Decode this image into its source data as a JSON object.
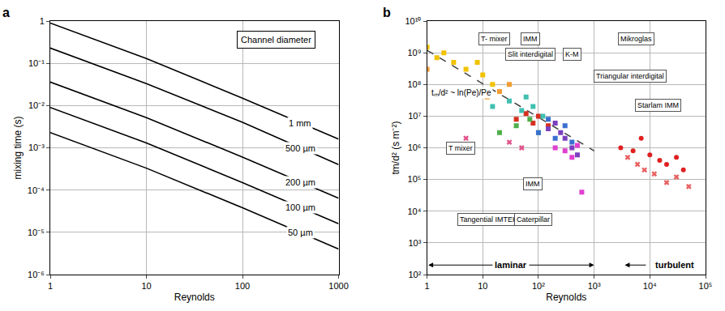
{
  "chart_data": [
    {
      "panel": "a",
      "type": "line",
      "log": true,
      "grid": true,
      "xlabel": "Reynolds",
      "ylabel": "mixing time (s)",
      "xlim": [
        1,
        1000
      ],
      "xticks": [
        1,
        10,
        100,
        1000
      ],
      "ylim": [
        1e-06,
        1
      ],
      "yticks": [
        {
          "value": 1e-06,
          "label": "10⁻⁶"
        },
        {
          "value": 1e-05,
          "label": "10⁻⁵"
        },
        {
          "value": 0.0001,
          "label": "10⁻⁴"
        },
        {
          "value": 0.001,
          "label": "10⁻³"
        },
        {
          "value": 0.01,
          "label": "10⁻²"
        },
        {
          "value": 0.1,
          "label": "10⁻¹"
        },
        1
      ],
      "annotations": [
        {
          "text": "Channel diameter"
        }
      ],
      "series": [
        {
          "name": "1 mm",
          "color": "#000000",
          "x": [
            1,
            10,
            100,
            1000
          ],
          "values": [
            0.9,
            0.13,
            0.015,
            0.0016
          ]
        },
        {
          "name": "500 µm",
          "color": "#000000",
          "x": [
            1,
            10,
            100,
            1000
          ],
          "values": [
            0.23,
            0.033,
            0.004,
            0.0004
          ]
        },
        {
          "name": "200 µm",
          "color": "#000000",
          "x": [
            1,
            10,
            100,
            1000
          ],
          "values": [
            0.036,
            0.0052,
            0.0006,
            6.4e-05
          ]
        },
        {
          "name": "100 µm",
          "color": "#000000",
          "x": [
            1,
            10,
            100,
            1000
          ],
          "values": [
            0.009,
            0.0013,
            0.00015,
            1.6e-05
          ]
        },
        {
          "name": "50 µm",
          "color": "#000000",
          "x": [
            1,
            10,
            100,
            1000
          ],
          "values": [
            0.0023,
            0.00033,
            3.8e-05,
            4e-06
          ]
        }
      ]
    },
    {
      "panel": "b",
      "type": "scatter",
      "log": true,
      "grid": true,
      "xlabel": "Reynolds",
      "ylabel": "tm/d² (s m⁻²)",
      "xlim": [
        1,
        100000
      ],
      "xticks": [
        1,
        10,
        {
          "value": 100,
          "label": "10²"
        },
        {
          "value": 1000,
          "label": "10³"
        },
        {
          "value": 10000,
          "label": "10⁴"
        },
        {
          "value": 100000,
          "label": "10⁵"
        }
      ],
      "ylim": [
        100,
        10000000000
      ],
      "yticks": [
        {
          "value": 100,
          "label": "10²"
        },
        {
          "value": 1000,
          "label": "10³"
        },
        {
          "value": 10000,
          "label": "10⁴"
        },
        {
          "value": 100000,
          "label": "10⁵"
        },
        {
          "value": 1000000,
          "label": "10⁶"
        },
        {
          "value": 10000000,
          "label": "10⁷"
        },
        {
          "value": 100000000,
          "label": "10⁸"
        },
        {
          "value": 1000000000,
          "label": "10⁹"
        },
        {
          "value": 10000000000,
          "label": "10¹⁰"
        }
      ],
      "annotations": [
        {
          "text": "T- mixer"
        },
        {
          "text": "IMM"
        },
        {
          "text": "Slit interdigital"
        },
        {
          "text": "K-M"
        },
        {
          "text": "Mikroglas"
        },
        {
          "text": "Triangular interdigital"
        },
        {
          "text": "Starlam IMM"
        },
        {
          "text": "T mixer"
        },
        {
          "text": "Tangential IMTEK"
        },
        {
          "text": "IMM"
        },
        {
          "text": "Caterpillar"
        },
        {
          "text": "tₘ/d² ~ ln(Pe)/Pe"
        },
        {
          "text": "laminar"
        },
        {
          "text": "turbulent"
        }
      ],
      "series": [
        {
          "type": "line",
          "line_style": "dash",
          "color": "#404040",
          "x": [
            1,
            1000
          ],
          "values": [
            1200000000,
            800000
          ]
        },
        {
          "type": "scatter",
          "marker": "square",
          "color": "#f2c200",
          "x": [
            1,
            1.5,
            2,
            3,
            5,
            8,
            10,
            15
          ],
          "values": [
            1500000000,
            700000000,
            1000000000,
            500000000,
            300000000,
            500000000,
            200000000,
            100000000
          ]
        },
        {
          "type": "scatter",
          "marker": "square",
          "color": "#f39c34",
          "x": [
            1,
            12,
            20,
            30
          ],
          "values": [
            300000000,
            40000000,
            60000000,
            100000000
          ]
        },
        {
          "type": "scatter",
          "marker": "square",
          "color": "#d7301f",
          "x": [
            40,
            60,
            80,
            100,
            150
          ],
          "values": [
            8000000,
            12000000,
            6000000,
            10000000,
            5000000
          ]
        },
        {
          "type": "scatter",
          "marker": "square",
          "color": "#3fbfb0",
          "x": [
            15,
            30,
            50,
            60,
            80,
            120
          ],
          "values": [
            20000000,
            30000000,
            15000000,
            40000000,
            20000000,
            10000000
          ]
        },
        {
          "type": "scatter",
          "marker": "square",
          "color": "#4daf4a",
          "x": [
            20,
            40,
            70,
            100
          ],
          "values": [
            3000000,
            5000000,
            8000000,
            3000000
          ]
        },
        {
          "type": "scatter",
          "marker": "square",
          "color": "#3b6fd0",
          "x": [
            100,
            150,
            200,
            300,
            400
          ],
          "values": [
            3000000,
            8000000,
            2000000,
            5000000,
            1500000
          ]
        },
        {
          "type": "scatter",
          "marker": "square",
          "color": "#7b3fbf",
          "x": [
            150,
            200,
            250,
            300,
            400,
            500
          ],
          "values": [
            4000000,
            6000000,
            3000000,
            2000000,
            1000000,
            600000
          ]
        },
        {
          "type": "scatter",
          "marker": "square",
          "color": "#e040d0",
          "x": [
            200,
            300,
            400,
            500,
            600
          ],
          "values": [
            1000000,
            800000,
            500000,
            1200000,
            40000
          ]
        },
        {
          "type": "scatter",
          "marker": "x",
          "color": "#e0508a",
          "x": [
            5,
            30,
            50
          ],
          "values": [
            2000000,
            1500000,
            1000000
          ]
        },
        {
          "type": "scatter",
          "marker": "circle",
          "color": "#e02020",
          "x": [
            3000,
            5000,
            7000,
            10000,
            15000,
            20000,
            30000,
            40000
          ],
          "values": [
            1000000,
            800000,
            2000000,
            600000,
            400000,
            300000,
            500000,
            200000
          ]
        },
        {
          "type": "scatter",
          "marker": "x",
          "color": "#e86060",
          "x": [
            4000,
            6000,
            8000,
            12000,
            20000,
            30000,
            50000
          ],
          "values": [
            500000,
            300000,
            200000,
            150000,
            80000,
            120000,
            60000
          ]
        }
      ]
    }
  ]
}
